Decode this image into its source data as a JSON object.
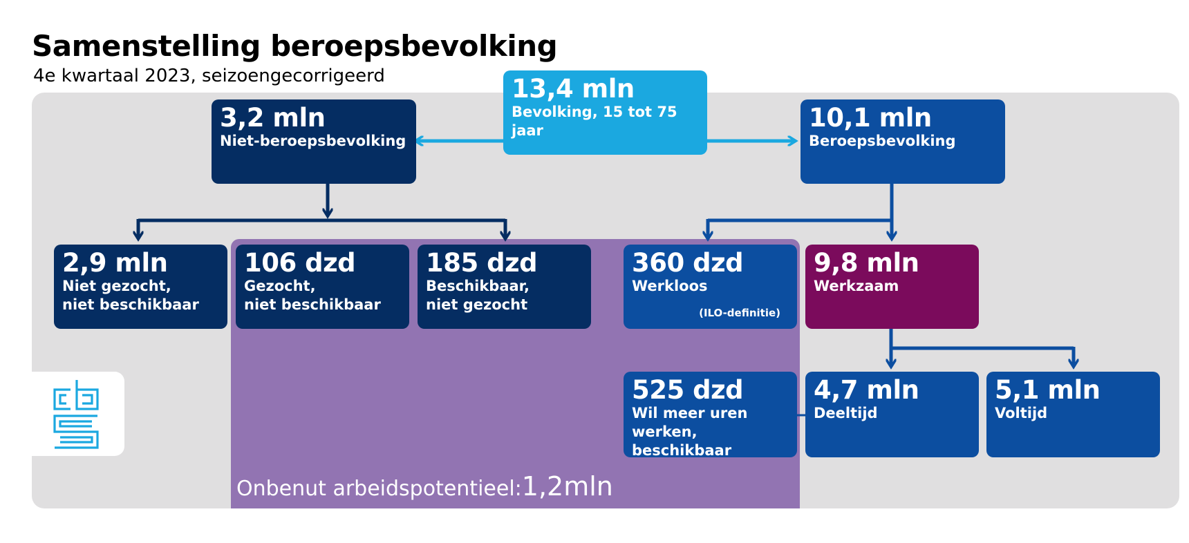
{
  "title": "Samenstelling beroepsbevolking",
  "subtitle": "4e kwartaal 2023, seizoengecorrigeerd",
  "colors": {
    "dark_navy": "#052d62",
    "blue": "#0c4ea0",
    "sky": "#1ba8e0",
    "plum": "#7b0b5c",
    "purple": "#9274b2",
    "panel": "#e0dfe0"
  },
  "nodes": {
    "population": {
      "value": "13,4 mln",
      "label": "Bevolking, 15 tot 75 jaar"
    },
    "not_labour_force": {
      "value": "3,2 mln",
      "label": "Niet-beroepsbevolking"
    },
    "labour_force": {
      "value": "10,1 mln",
      "label": "Beroepsbevolking"
    },
    "not_searched": {
      "value": "2,9 mln",
      "label": "Niet gezocht,\nniet beschikbaar"
    },
    "searched": {
      "value": "106 dzd",
      "label": "Gezocht,\nniet beschikbaar"
    },
    "available": {
      "value": "185 dzd",
      "label": "Beschikbaar,\nniet gezocht"
    },
    "unemployed": {
      "value": "360 dzd",
      "label": "Werkloos",
      "note": "(ILO-definitie)"
    },
    "employed": {
      "value": "9,8 mln",
      "label": "Werkzaam"
    },
    "more_hours": {
      "value": "525 dzd",
      "label": "Wil meer uren werken,\nbeschikbaar"
    },
    "part_time": {
      "value": "4,7 mln",
      "label": "Deeltijd"
    },
    "full_time": {
      "value": "5,1 mln",
      "label": "Voltijd"
    }
  },
  "unused_potential": {
    "label": "Onbenut arbeidspotentieel:",
    "value": "1,2mln"
  },
  "logo": {
    "icon": "cbs-logo-icon",
    "text": "cbs"
  }
}
